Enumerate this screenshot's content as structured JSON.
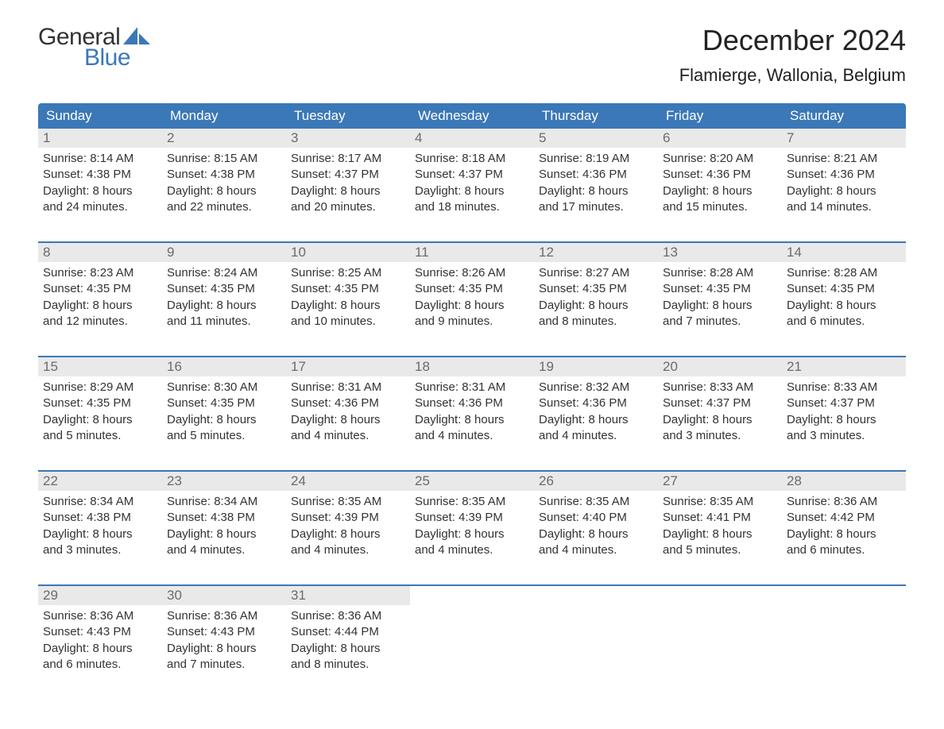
{
  "brand": {
    "word1": "General",
    "word2": "Blue",
    "text_color": "#333333",
    "accent_color": "#3b78b8"
  },
  "title": "December 2024",
  "location": "Flamierge, Wallonia, Belgium",
  "colors": {
    "header_bg": "#3b78b8",
    "header_text": "#ffffff",
    "daynum_bg": "#e9e9e9",
    "daynum_text": "#6b6b6b",
    "body_text": "#333333",
    "week_border": "#3b78b8",
    "background": "#ffffff"
  },
  "typography": {
    "title_fontsize": 36,
    "location_fontsize": 22,
    "dayheader_fontsize": 17,
    "daynum_fontsize": 17,
    "detail_fontsize": 15,
    "font_family": "Arial"
  },
  "day_headers": [
    "Sunday",
    "Monday",
    "Tuesday",
    "Wednesday",
    "Thursday",
    "Friday",
    "Saturday"
  ],
  "weeks": [
    [
      {
        "num": "1",
        "sunrise": "Sunrise: 8:14 AM",
        "sunset": "Sunset: 4:38 PM",
        "day1": "Daylight: 8 hours",
        "day2": "and 24 minutes."
      },
      {
        "num": "2",
        "sunrise": "Sunrise: 8:15 AM",
        "sunset": "Sunset: 4:38 PM",
        "day1": "Daylight: 8 hours",
        "day2": "and 22 minutes."
      },
      {
        "num": "3",
        "sunrise": "Sunrise: 8:17 AM",
        "sunset": "Sunset: 4:37 PM",
        "day1": "Daylight: 8 hours",
        "day2": "and 20 minutes."
      },
      {
        "num": "4",
        "sunrise": "Sunrise: 8:18 AM",
        "sunset": "Sunset: 4:37 PM",
        "day1": "Daylight: 8 hours",
        "day2": "and 18 minutes."
      },
      {
        "num": "5",
        "sunrise": "Sunrise: 8:19 AM",
        "sunset": "Sunset: 4:36 PM",
        "day1": "Daylight: 8 hours",
        "day2": "and 17 minutes."
      },
      {
        "num": "6",
        "sunrise": "Sunrise: 8:20 AM",
        "sunset": "Sunset: 4:36 PM",
        "day1": "Daylight: 8 hours",
        "day2": "and 15 minutes."
      },
      {
        "num": "7",
        "sunrise": "Sunrise: 8:21 AM",
        "sunset": "Sunset: 4:36 PM",
        "day1": "Daylight: 8 hours",
        "day2": "and 14 minutes."
      }
    ],
    [
      {
        "num": "8",
        "sunrise": "Sunrise: 8:23 AM",
        "sunset": "Sunset: 4:35 PM",
        "day1": "Daylight: 8 hours",
        "day2": "and 12 minutes."
      },
      {
        "num": "9",
        "sunrise": "Sunrise: 8:24 AM",
        "sunset": "Sunset: 4:35 PM",
        "day1": "Daylight: 8 hours",
        "day2": "and 11 minutes."
      },
      {
        "num": "10",
        "sunrise": "Sunrise: 8:25 AM",
        "sunset": "Sunset: 4:35 PM",
        "day1": "Daylight: 8 hours",
        "day2": "and 10 minutes."
      },
      {
        "num": "11",
        "sunrise": "Sunrise: 8:26 AM",
        "sunset": "Sunset: 4:35 PM",
        "day1": "Daylight: 8 hours",
        "day2": "and 9 minutes."
      },
      {
        "num": "12",
        "sunrise": "Sunrise: 8:27 AM",
        "sunset": "Sunset: 4:35 PM",
        "day1": "Daylight: 8 hours",
        "day2": "and 8 minutes."
      },
      {
        "num": "13",
        "sunrise": "Sunrise: 8:28 AM",
        "sunset": "Sunset: 4:35 PM",
        "day1": "Daylight: 8 hours",
        "day2": "and 7 minutes."
      },
      {
        "num": "14",
        "sunrise": "Sunrise: 8:28 AM",
        "sunset": "Sunset: 4:35 PM",
        "day1": "Daylight: 8 hours",
        "day2": "and 6 minutes."
      }
    ],
    [
      {
        "num": "15",
        "sunrise": "Sunrise: 8:29 AM",
        "sunset": "Sunset: 4:35 PM",
        "day1": "Daylight: 8 hours",
        "day2": "and 5 minutes."
      },
      {
        "num": "16",
        "sunrise": "Sunrise: 8:30 AM",
        "sunset": "Sunset: 4:35 PM",
        "day1": "Daylight: 8 hours",
        "day2": "and 5 minutes."
      },
      {
        "num": "17",
        "sunrise": "Sunrise: 8:31 AM",
        "sunset": "Sunset: 4:36 PM",
        "day1": "Daylight: 8 hours",
        "day2": "and 4 minutes."
      },
      {
        "num": "18",
        "sunrise": "Sunrise: 8:31 AM",
        "sunset": "Sunset: 4:36 PM",
        "day1": "Daylight: 8 hours",
        "day2": "and 4 minutes."
      },
      {
        "num": "19",
        "sunrise": "Sunrise: 8:32 AM",
        "sunset": "Sunset: 4:36 PM",
        "day1": "Daylight: 8 hours",
        "day2": "and 4 minutes."
      },
      {
        "num": "20",
        "sunrise": "Sunrise: 8:33 AM",
        "sunset": "Sunset: 4:37 PM",
        "day1": "Daylight: 8 hours",
        "day2": "and 3 minutes."
      },
      {
        "num": "21",
        "sunrise": "Sunrise: 8:33 AM",
        "sunset": "Sunset: 4:37 PM",
        "day1": "Daylight: 8 hours",
        "day2": "and 3 minutes."
      }
    ],
    [
      {
        "num": "22",
        "sunrise": "Sunrise: 8:34 AM",
        "sunset": "Sunset: 4:38 PM",
        "day1": "Daylight: 8 hours",
        "day2": "and 3 minutes."
      },
      {
        "num": "23",
        "sunrise": "Sunrise: 8:34 AM",
        "sunset": "Sunset: 4:38 PM",
        "day1": "Daylight: 8 hours",
        "day2": "and 4 minutes."
      },
      {
        "num": "24",
        "sunrise": "Sunrise: 8:35 AM",
        "sunset": "Sunset: 4:39 PM",
        "day1": "Daylight: 8 hours",
        "day2": "and 4 minutes."
      },
      {
        "num": "25",
        "sunrise": "Sunrise: 8:35 AM",
        "sunset": "Sunset: 4:39 PM",
        "day1": "Daylight: 8 hours",
        "day2": "and 4 minutes."
      },
      {
        "num": "26",
        "sunrise": "Sunrise: 8:35 AM",
        "sunset": "Sunset: 4:40 PM",
        "day1": "Daylight: 8 hours",
        "day2": "and 4 minutes."
      },
      {
        "num": "27",
        "sunrise": "Sunrise: 8:35 AM",
        "sunset": "Sunset: 4:41 PM",
        "day1": "Daylight: 8 hours",
        "day2": "and 5 minutes."
      },
      {
        "num": "28",
        "sunrise": "Sunrise: 8:36 AM",
        "sunset": "Sunset: 4:42 PM",
        "day1": "Daylight: 8 hours",
        "day2": "and 6 minutes."
      }
    ],
    [
      {
        "num": "29",
        "sunrise": "Sunrise: 8:36 AM",
        "sunset": "Sunset: 4:43 PM",
        "day1": "Daylight: 8 hours",
        "day2": "and 6 minutes."
      },
      {
        "num": "30",
        "sunrise": "Sunrise: 8:36 AM",
        "sunset": "Sunset: 4:43 PM",
        "day1": "Daylight: 8 hours",
        "day2": "and 7 minutes."
      },
      {
        "num": "31",
        "sunrise": "Sunrise: 8:36 AM",
        "sunset": "Sunset: 4:44 PM",
        "day1": "Daylight: 8 hours",
        "day2": "and 8 minutes."
      },
      {
        "empty": true
      },
      {
        "empty": true
      },
      {
        "empty": true
      },
      {
        "empty": true
      }
    ]
  ]
}
